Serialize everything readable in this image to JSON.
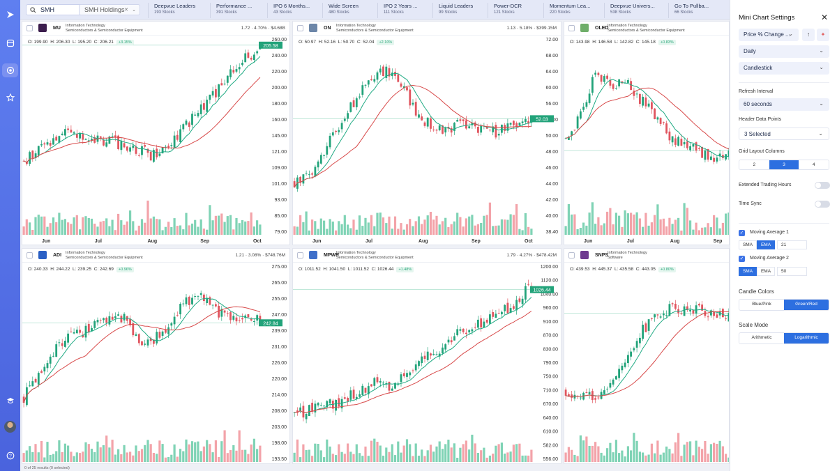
{
  "search": {
    "value": "SMH"
  },
  "holdings": {
    "label": "SMH Holdings"
  },
  "tabs": [
    {
      "name": "Deepvue Leaders",
      "count": "193 Stocks"
    },
    {
      "name": "Performance ...",
      "count": "391 Stocks"
    },
    {
      "name": "IPO 6 Months...",
      "count": "43 Stocks"
    },
    {
      "name": "Wide Screen",
      "count": "480 Stocks"
    },
    {
      "name": "IPO 2 Years ...",
      "count": "111 Stocks"
    },
    {
      "name": "Liquid Leaders",
      "count": "99 Stocks"
    },
    {
      "name": "Power-DCR",
      "count": "121 Stocks"
    },
    {
      "name": "Momentum Lea...",
      "count": "220 Stocks"
    },
    {
      "name": "Deepvue Univers...",
      "count": "538 Stocks"
    },
    {
      "name": "Go To Pullba...",
      "count": "66 Stocks"
    }
  ],
  "months_row1": [
    "Jun",
    "Jul",
    "Aug",
    "Sep",
    "Oct"
  ],
  "panels": [
    {
      "ticker": "MU",
      "sector": "Information Technology",
      "industry": "Semiconductors & Semiconductor Equipment",
      "stat": "1.72 · 4.70% · $4.68B",
      "o": "O: 199.90",
      "h": "H: 206.30",
      "l": "L: 195.20",
      "c": "C: 206.21",
      "pct": "+3.15%",
      "last": "205.58",
      "logo": "#3b1d4d",
      "yticks": [
        "260.00",
        "240.00",
        "220.00",
        "200.00",
        "180.00",
        "160.00",
        "145.00",
        "121.00",
        "109.00",
        "101.00",
        "93.00",
        "85.00",
        "79.00"
      ],
      "months": [
        "Jun",
        "Jul",
        "Aug",
        "Sep",
        "Oct"
      ]
    },
    {
      "ticker": "ON",
      "sector": "Information Technology",
      "industry": "Semiconductors & Semiconductor Equipment",
      "stat": "1.13 · 5.18% · $399.15M",
      "o": "O: 50.97",
      "h": "H: 52.16",
      "l": "L: 50.70",
      "c": "C: 52.04",
      "pct": "+2.10%",
      "last": "52.03",
      "logo": "#6c86a8",
      "yticks": [
        "72.00",
        "68.00",
        "64.00",
        "60.00",
        "56.00",
        "52.00",
        "50.00",
        "48.00",
        "46.00",
        "44.00",
        "42.00",
        "40.00",
        "38.40"
      ],
      "months": [
        "Jun",
        "Jul",
        "Aug",
        "Sep",
        "Oct"
      ]
    },
    {
      "ticker": "OLED",
      "sector": "Information Technology",
      "industry": "Semiconductors & Semiconductor Equipment",
      "stat": "",
      "o": "O: 143.98",
      "h": "H: 146.58",
      "l": "L: 142.82",
      "c": "C: 145.18",
      "pct": "+0.83%",
      "last": "",
      "logo": "#6fae6a",
      "yticks": [],
      "months": [
        "Jun",
        "Jul",
        "Aug",
        "Sep"
      ]
    },
    {
      "ticker": "ADI",
      "sector": "Information Technology",
      "industry": "Semiconductors & Semiconductor Equipment",
      "stat": "1.21 · 3.08% · $748.76M",
      "o": "O: 240.33",
      "h": "H: 244.22",
      "l": "L: 239.25",
      "c": "C: 242.69",
      "pct": "+0.96%",
      "last": "242.84",
      "logo": "#2a5fc4",
      "yticks": [
        "275.00",
        "265.00",
        "255.00",
        "247.00",
        "239.00",
        "231.00",
        "226.00",
        "220.00",
        "214.00",
        "208.00",
        "203.00",
        "198.00",
        "193.50"
      ],
      "months": []
    },
    {
      "ticker": "MPWR",
      "sector": "Information Technology",
      "industry": "Semiconductors & Semiconductor Equipment",
      "stat": "1.79 · 4.27% · $478.42M",
      "o": "O: 1011.52",
      "h": "H: 1041.50",
      "l": "L: 1011.52",
      "c": "C: 1026.44",
      "pct": "+1.48%",
      "last": "1026.44",
      "logo": "#3f6fc9",
      "yticks": [
        "1200.00",
        "1120.00",
        "1040.00",
        "960.00",
        "910.00",
        "870.00",
        "830.00",
        "790.00",
        "750.00",
        "710.00",
        "670.00",
        "640.00",
        "610.00",
        "582.00",
        "556.00"
      ],
      "months": []
    },
    {
      "ticker": "SNPS",
      "sector": "Information Technology",
      "industry": "Software",
      "stat": "",
      "o": "O: 439.53",
      "h": "H: 445.37",
      "l": "L: 435.58",
      "c": "C: 443.05",
      "pct": "+0.80%",
      "last": "",
      "logo": "#6e3a8f",
      "yticks": [],
      "months": []
    }
  ],
  "settings": {
    "title": "Mini Chart Settings",
    "metric": "Price % Change ...",
    "period": "Daily",
    "chart_type": "Candlestick",
    "refresh_label": "Refresh Interval",
    "refresh_value": "60 seconds",
    "header_label": "Header Data Points",
    "header_value": "3 Selected",
    "grid_label": "Grid Layout Columns",
    "grid_options": [
      "2",
      "3",
      "4"
    ],
    "grid_selected": 1,
    "extended_label": "Extended Trading Hours",
    "timesync_label": "Time Sync",
    "ma1_label": "Moving Average 1",
    "ma1_type_options": [
      "SMA",
      "EMA"
    ],
    "ma1_type_selected": 1,
    "ma1_value": "21",
    "ma2_label": "Moving Average 2",
    "ma2_type_options": [
      "SMA",
      "EMA"
    ],
    "ma2_type_selected": 0,
    "ma2_value": "50",
    "candle_label": "Candle Colors",
    "candle_options": [
      "Blue/Pink",
      "Green/Red"
    ],
    "candle_selected": 1,
    "scale_label": "Scale Mode",
    "scale_options": [
      "Arithmetic",
      "Logarithmic"
    ],
    "scale_selected": 1
  },
  "footer": "0 of 25 results (0 selected)",
  "colors": {
    "up": "#22a37a",
    "down": "#e0555f",
    "ma_fast": "#1faa83",
    "ma_slow": "#d84a4a",
    "accent": "#2d6fe0",
    "nav": "#5570e6"
  }
}
